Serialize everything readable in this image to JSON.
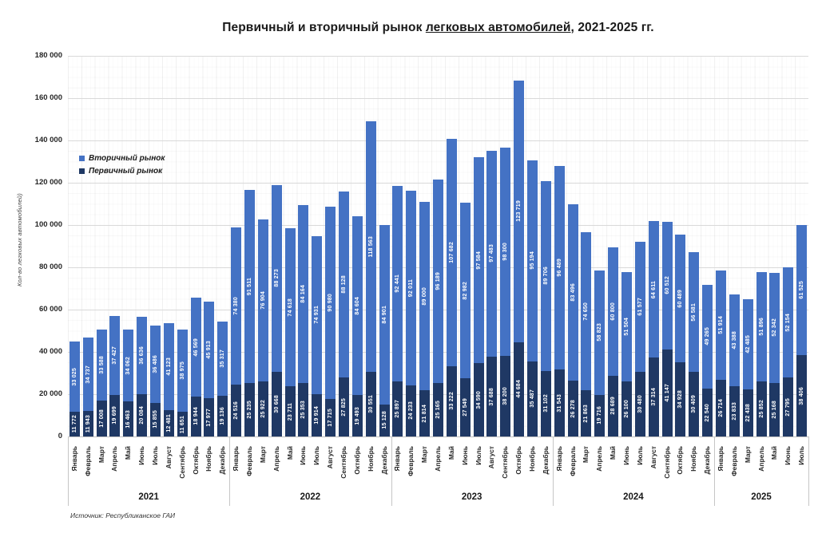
{
  "title": {
    "pre": "Первичный и вторичный рынок ",
    "underlined": "легковых автомобилей",
    "post": ", 2021-2025 гг."
  },
  "legend": {
    "items": [
      {
        "label": "Вторичный рынок",
        "color": "#4472C4"
      },
      {
        "label": "Первичный рынок",
        "color": "#1F3864"
      }
    ]
  },
  "y_axis": {
    "title": "Кол-во легковых автомобилей)"
  },
  "source": "Источник: Республиканское ГАИ",
  "chart_data": {
    "type": "bar",
    "stacked": true,
    "title": "Первичный и вторичный рынок легковых автомобилей, 2021-2025 гг.",
    "ylabel": "Кол-во легковых автомобилей",
    "ylim": [
      0,
      180000
    ],
    "ytick_step": 20000,
    "grid": true,
    "legend_position": "inside-upper-left",
    "series_meta": [
      {
        "key": "primary",
        "name": "Первичный рынок",
        "color": "#1F3864"
      },
      {
        "key": "secondary",
        "name": "Вторичный рынок",
        "color": "#4472C4"
      }
    ],
    "groups": [
      {
        "year": "2021",
        "months": [
          "Январь",
          "Февраль",
          "Март",
          "Апрель",
          "Май",
          "Июнь",
          "Июль",
          "Август",
          "Сентябрь",
          "Октябрь",
          "Ноябрь",
          "Декабрь"
        ],
        "primary": [
          11772,
          11943,
          17008,
          19699,
          16463,
          20084,
          15855,
          12481,
          11651,
          18944,
          17977,
          19136
        ],
        "secondary": [
          33025,
          34737,
          33588,
          37427,
          34062,
          36636,
          36486,
          41123,
          38975,
          46569,
          45913,
          35317
        ]
      },
      {
        "year": "2022",
        "months": [
          "Январь",
          "Февраль",
          "Март",
          "Апрель",
          "Май",
          "Июнь",
          "Июль",
          "Август",
          "Сентябрь",
          "Октябрь",
          "Ноябрь",
          "Декабрь"
        ],
        "primary": [
          24516,
          25235,
          25922,
          30668,
          23711,
          25353,
          19914,
          17715,
          27825,
          19493,
          30551,
          15128
        ],
        "secondary": [
          74380,
          91511,
          76904,
          88273,
          74618,
          84164,
          74931,
          90980,
          88128,
          84604,
          118563,
          84901
        ]
      },
      {
        "year": "2023",
        "months": [
          "Январь",
          "Февраль",
          "Март",
          "Апрель",
          "Май",
          "Июнь",
          "Июль",
          "Август",
          "Сентябрь",
          "Октябрь",
          "Ноябрь",
          "Декабрь"
        ],
        "primary": [
          25897,
          24233,
          21814,
          25165,
          33222,
          27549,
          34590,
          37688,
          38200,
          44684,
          35487,
          31102
        ],
        "secondary": [
          92441,
          92011,
          89000,
          96189,
          107682,
          82982,
          97584,
          97483,
          98300,
          123719,
          95194,
          89706
        ]
      },
      {
        "year": "2024",
        "months": [
          "Январь",
          "Февраль",
          "Март",
          "Апрель",
          "Май",
          "Июнь",
          "Июль",
          "Август",
          "Сентябрь",
          "Октябрь",
          "Ноябрь",
          "Декабрь"
        ],
        "primary": [
          31543,
          26278,
          21863,
          19716,
          28689,
          26100,
          30480,
          37314,
          41147,
          34928,
          30409,
          22540
        ],
        "secondary": [
          96489,
          83496,
          74650,
          58823,
          60800,
          51504,
          61577,
          64611,
          60512,
          60489,
          56581,
          49265
        ]
      },
      {
        "year": "2025",
        "months": [
          "Январь",
          "Февраль",
          "Март",
          "Апрель",
          "Май",
          "Июнь",
          "Июль"
        ],
        "primary": [
          26714,
          23833,
          22438,
          25852,
          25168,
          27795,
          38406
        ],
        "secondary": [
          51914,
          43388,
          42485,
          51896,
          52342,
          52154,
          61525
        ]
      }
    ]
  }
}
